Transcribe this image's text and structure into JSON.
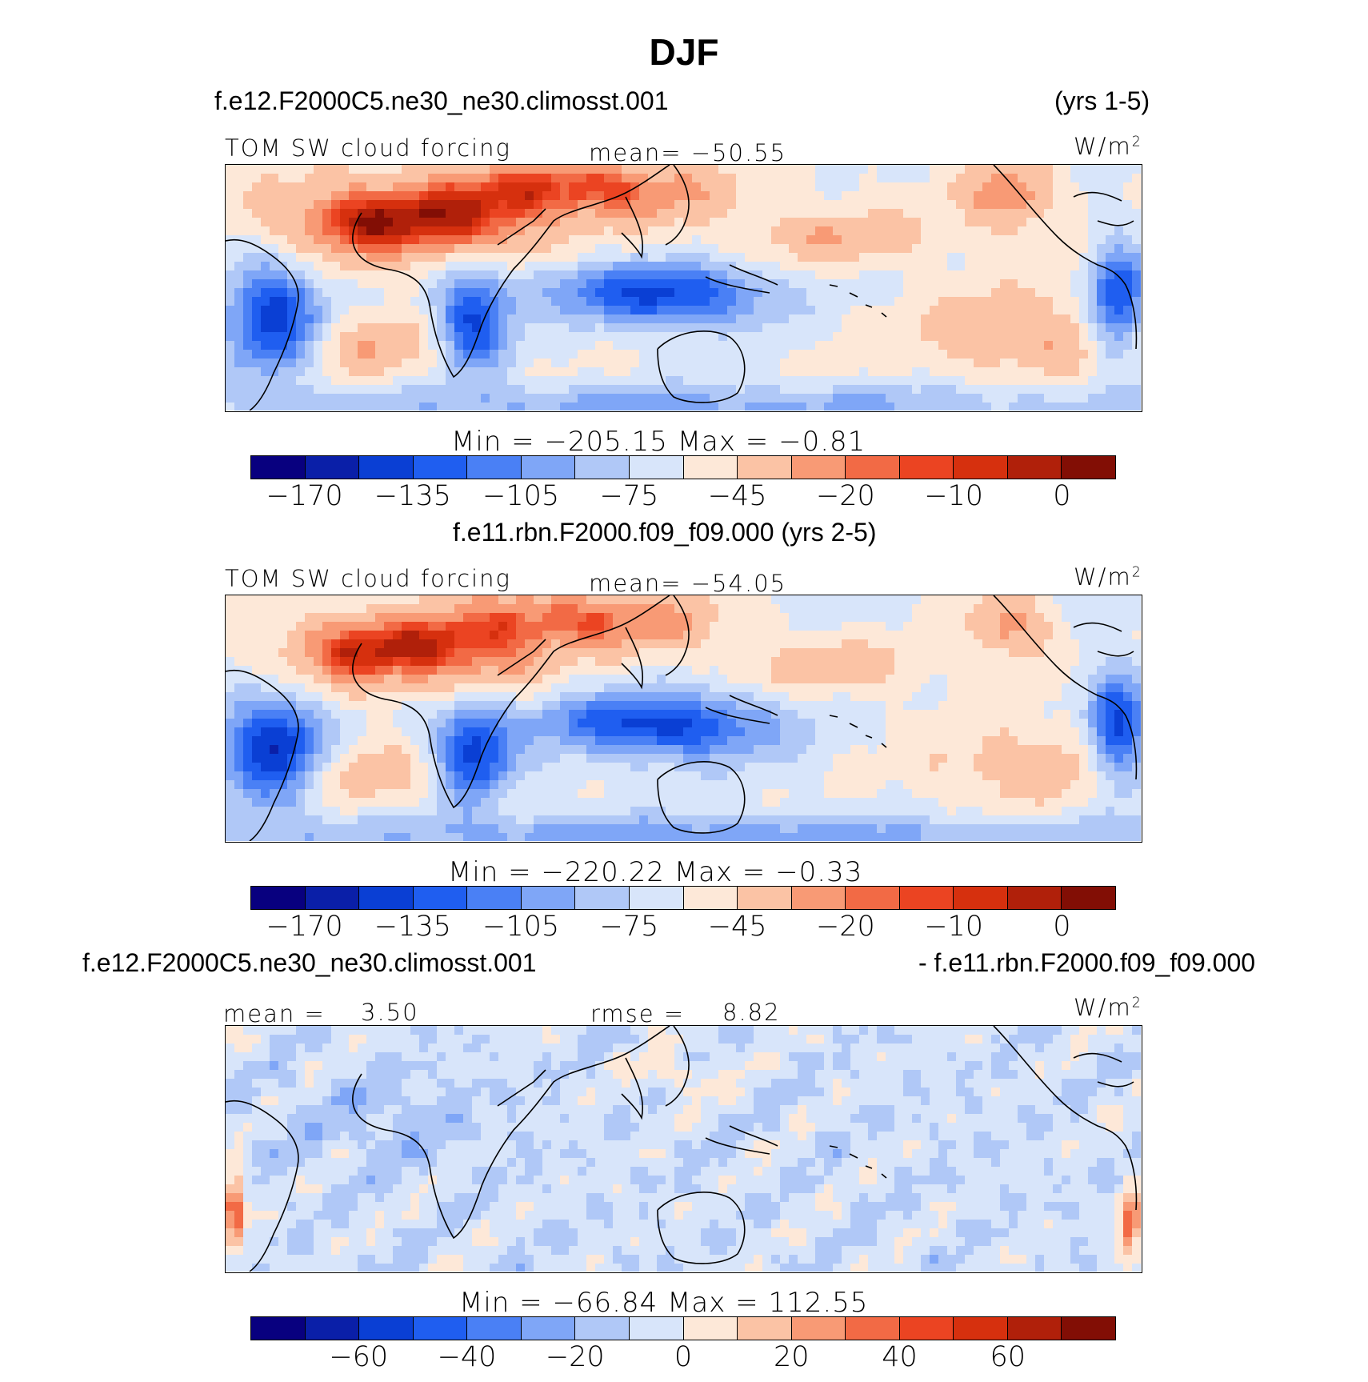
{
  "title": "DJF",
  "colors": {
    "bg": "#ffffff",
    "land_outline": "#000000"
  },
  "palette": [
    "#08007f",
    "#0a1fa8",
    "#0a3fd4",
    "#1f5ef0",
    "#4a80f5",
    "#7fa6f7",
    "#b0c8f7",
    "#d8e5fa",
    "#fde8d8",
    "#fbc3a5",
    "#f89a75",
    "#f26a45",
    "#eb4422",
    "#d6300e",
    "#b0200a",
    "#820e05"
  ],
  "panels": [
    {
      "case_left": "f.e12.F2000C5.ne30_ne30.climosst.001",
      "case_right": "(yrs 1-5)",
      "varname": "TOM SW cloud forcing",
      "mean_text": "mean= −50.55",
      "units": "W/m",
      "units_sup": "2",
      "minmax": "Min = −205.15 Max =   −0.81",
      "ticks": [
        "−170",
        "−135",
        "−105",
        "−75",
        "−45",
        "−20",
        "−10",
        "0"
      ],
      "field": "model1"
    },
    {
      "case_center": "f.e11.rbn.F2000.f09_f09.000 (yrs 2-5)",
      "varname": "TOM SW cloud forcing",
      "mean_text": "mean= −54.05",
      "units": "W/m",
      "units_sup": "2",
      "minmax": "Min = −220.22 Max =   −0.33",
      "ticks": [
        "−170",
        "−135",
        "−105",
        "−75",
        "−45",
        "−20",
        "−10",
        "0"
      ],
      "field": "model2"
    },
    {
      "case_left": "f.e12.F2000C5.ne30_ne30.climosst.001",
      "case_right": "- f.e11.rbn.F2000.f09_f09.000",
      "mean_label": "mean =",
      "mean_value": "3.50",
      "rmse_label": "rmse =",
      "rmse_value": "8.82",
      "units": "W/m",
      "units_sup": "2",
      "minmax": "Min = −66.84 Max = 112.55",
      "ticks": [
        "−60",
        "−40",
        "−20",
        "0",
        "20",
        "40",
        "60"
      ],
      "field": "diff"
    }
  ]
}
